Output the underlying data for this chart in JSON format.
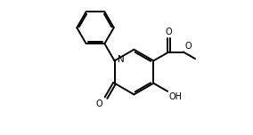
{
  "bg_color": "#ffffff",
  "line_color": "#000000",
  "line_width": 1.4,
  "fig_width": 2.84,
  "fig_height": 1.52,
  "dpi": 100,
  "xlim": [
    0,
    10
  ],
  "ylim": [
    0,
    5.36
  ]
}
